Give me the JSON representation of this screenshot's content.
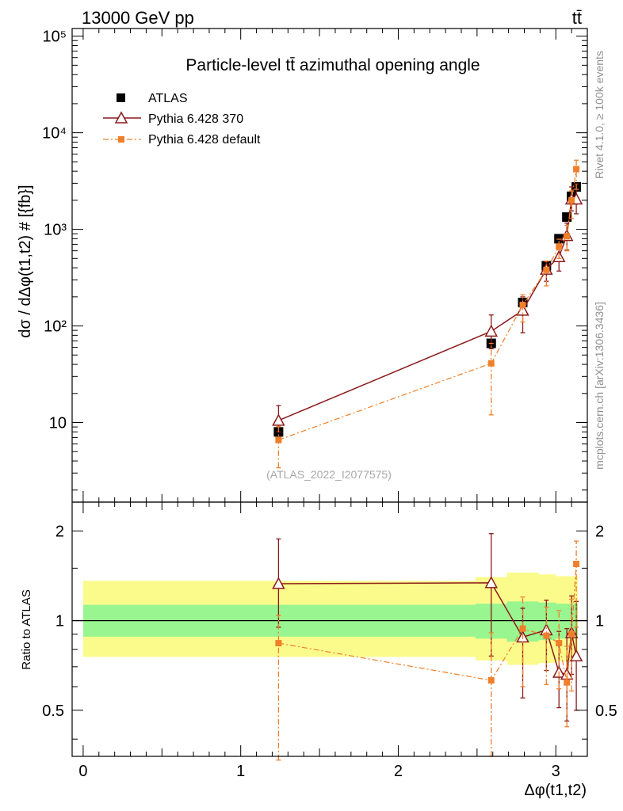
{
  "header": {
    "energy": "13000 GeV pp",
    "process": "tt̄"
  },
  "side_labels": {
    "rivet": "Rivet 4.1.0, ≥ 100k events",
    "mcplots": "mcplots.cern.ch [arXiv:1306.3436]"
  },
  "chart_data": [
    {
      "type": "scatter",
      "title": "Particle-level tt̄ azimuthal opening angle",
      "analysis_tag": "(ATLAS_2022_I2077575)",
      "ylabel": "dσ / dΔφ(t1,t2) # [{fb}]",
      "yscale": "log",
      "ylim": [
        1.5,
        120000
      ],
      "xlim": [
        -0.07,
        3.2
      ],
      "ytick_labels": [
        "10",
        "10²",
        "10³",
        "10⁴",
        "10⁵"
      ],
      "legend": {
        "placement": "top-left",
        "entries": [
          "ATLAS",
          "Pythia 6.428 370",
          "Pythia 6.428 default"
        ]
      },
      "series": [
        {
          "name": "ATLAS",
          "color": "#000000",
          "marker": "square",
          "x": [
            1.24,
            2.59,
            2.79,
            2.94,
            3.02,
            3.07,
            3.1,
            3.13
          ],
          "y": [
            8,
            66,
            175,
            420,
            800,
            1340,
            2200,
            2750
          ],
          "err": [
            [
              0.5,
              0.5
            ],
            [
              6,
              6
            ],
            [
              15,
              15
            ],
            [
              35,
              35
            ],
            [
              70,
              70
            ],
            [
              120,
              120
            ],
            [
              200,
              200
            ],
            [
              250,
              250
            ]
          ]
        },
        {
          "name": "Pythia 6.428 370",
          "color": "#8b1a1a",
          "marker": "open-triangle",
          "x": [
            1.24,
            2.59,
            2.79,
            2.94,
            3.02,
            3.07,
            3.1,
            3.13
          ],
          "y": [
            10.5,
            88,
            145,
            385,
            520,
            860,
            2050,
            2050
          ],
          "err": [
            [
              2.5,
              4.5
            ],
            [
              30,
              42
            ],
            [
              60,
              55
            ],
            [
              95,
              80
            ],
            [
              150,
              180
            ],
            [
              250,
              300
            ],
            [
              500,
              700
            ],
            [
              600,
              900
            ]
          ]
        },
        {
          "name": "Pythia 6.428 default",
          "color": "#f07f2a",
          "marker": "filled-square",
          "x": [
            1.24,
            2.59,
            2.79,
            2.94,
            3.02,
            3.07,
            3.1,
            3.13
          ],
          "y": [
            6.6,
            41,
            165,
            380,
            660,
            850,
            2000,
            4200
          ],
          "err": [
            [
              3.2,
              2.5
            ],
            [
              29,
              25
            ],
            [
              55,
              45
            ],
            [
              120,
              90
            ],
            [
              160,
              130
            ],
            [
              250,
              250
            ],
            [
              700,
              500
            ],
            [
              1600,
              1000
            ]
          ]
        }
      ]
    },
    {
      "type": "scatter",
      "ylabel": "Ratio to ATLAS",
      "xlabel": "Δφ(t1,t2)",
      "yscale": "log",
      "ylim": [
        0.35,
        2.5
      ],
      "xlim": [
        -0.07,
        3.2
      ],
      "xtick_labels": [
        "0",
        "1",
        "2",
        "3"
      ],
      "ytick_labels": [
        "0.5",
        "1",
        "2"
      ],
      "band_x_edges": [
        0,
        2.49,
        2.69,
        2.89,
        3.0,
        3.05,
        3.085,
        3.12,
        3.14
      ],
      "band_green": [
        [
          0.883,
          1.13
        ],
        [
          0.87,
          1.14
        ],
        [
          0.85,
          1.16
        ],
        [
          0.86,
          1.15
        ],
        [
          0.87,
          1.14
        ],
        [
          0.87,
          1.14
        ],
        [
          0.87,
          1.14
        ],
        [
          0.87,
          1.14
        ]
      ],
      "band_yellow": [
        [
          0.755,
          1.36
        ],
        [
          0.735,
          1.4
        ],
        [
          0.71,
          1.45
        ],
        [
          0.72,
          1.43
        ],
        [
          0.73,
          1.41
        ],
        [
          0.73,
          1.41
        ],
        [
          0.73,
          1.41
        ],
        [
          0.73,
          1.41
        ]
      ],
      "series": [
        {
          "name": "Pythia 6.428 370",
          "color": "#8b1a1a",
          "marker": "open-triangle",
          "x": [
            1.24,
            2.59,
            2.79,
            2.94,
            3.02,
            3.07,
            3.1,
            3.13
          ],
          "y": [
            1.33,
            1.34,
            0.88,
            0.93,
            0.67,
            0.66,
            0.91,
            0.76
          ],
          "err": [
            [
              0.38,
              0.55
            ],
            [
              0.58,
              0.62
            ],
            [
              0.33,
              0.22
            ],
            [
              0.25,
              0.24
            ],
            [
              0.16,
              0.25
            ],
            [
              0.2,
              0.28
            ],
            [
              0.25,
              0.3
            ],
            [
              0.26,
              0.4
            ]
          ]
        },
        {
          "name": "Pythia 6.428 default",
          "color": "#f07f2a",
          "marker": "filled-square",
          "x": [
            1.24,
            2.59,
            2.79,
            2.94,
            3.02,
            3.07,
            3.1,
            3.13
          ],
          "y": [
            0.84,
            0.63,
            0.94,
            0.89,
            0.84,
            0.62,
            0.9,
            1.55
          ],
          "err": [
            [
              0.5,
              0.2
            ],
            [
              0.28,
              0.28
            ],
            [
              0.34,
              0.26
            ],
            [
              0.28,
              0.22
            ],
            [
              0.25,
              0.24
            ],
            [
              0.18,
              0.2
            ],
            [
              0.32,
              0.28
            ],
            [
              0.6,
              0.3
            ]
          ]
        }
      ]
    }
  ]
}
